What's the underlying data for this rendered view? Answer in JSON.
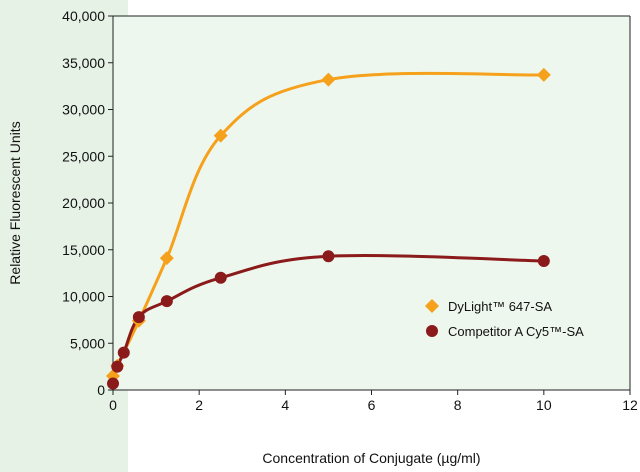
{
  "chart_data": {
    "type": "line",
    "title": "",
    "xlabel": "Concentration of Conjugate (µg/ml)",
    "ylabel": "Relative Fluorescent Units",
    "xlim": [
      0,
      12
    ],
    "ylim": [
      0,
      40000
    ],
    "x_ticks": [
      "0",
      "2",
      "4",
      "6",
      "8",
      "10",
      "12"
    ],
    "y_ticks": [
      "0",
      "5,000",
      "10,000",
      "15,000",
      "20,000",
      "25,000",
      "30,000",
      "35,000",
      "40,000"
    ],
    "grid": false,
    "legend_position": "bottom-right",
    "series": [
      {
        "name": "DyLight™ 647-SA",
        "marker": "diamond",
        "color": "#f5a11c",
        "x": [
          0,
          0.1,
          0.6,
          1.25,
          2.5,
          5,
          10
        ],
        "y": [
          1500,
          2600,
          7400,
          14100,
          27200,
          33200,
          33700
        ]
      },
      {
        "name": "Competitor A Cy5™-SA",
        "marker": "circle",
        "color": "#8b1a1a",
        "x": [
          0,
          0.1,
          0.25,
          0.6,
          1.25,
          2.5,
          5,
          10
        ],
        "y": [
          700,
          2500,
          4000,
          7800,
          9500,
          12000,
          14300,
          13800
        ]
      }
    ]
  },
  "colors": {
    "plot_background": "#eef7ee",
    "page_background": "#ffffff",
    "left_band": "#e6f2e6"
  }
}
